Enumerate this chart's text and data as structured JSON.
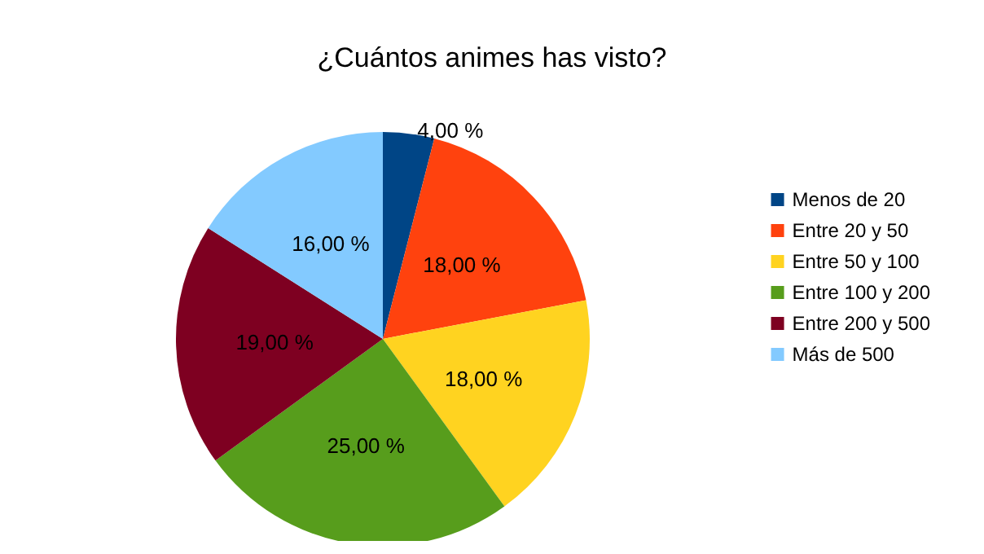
{
  "chart_data": {
    "type": "pie",
    "title": "¿Cuántos animes has visto?",
    "categories": [
      "Menos de 20",
      "Entre 20 y 50",
      "Entre 50 y 100",
      "Entre 100 y 200",
      "Entre 200 y 500",
      "Más de 500"
    ],
    "values": [
      4,
      18,
      18,
      25,
      19,
      16
    ],
    "colors": [
      "#004586",
      "#ff420e",
      "#ffd320",
      "#579d1c",
      "#7e0021",
      "#83caff"
    ],
    "value_labels": [
      "4,00 %",
      "18,00 %",
      "18,00 %",
      "25,00 %",
      "19,00 %",
      "16,00 %"
    ],
    "legend": "right"
  }
}
